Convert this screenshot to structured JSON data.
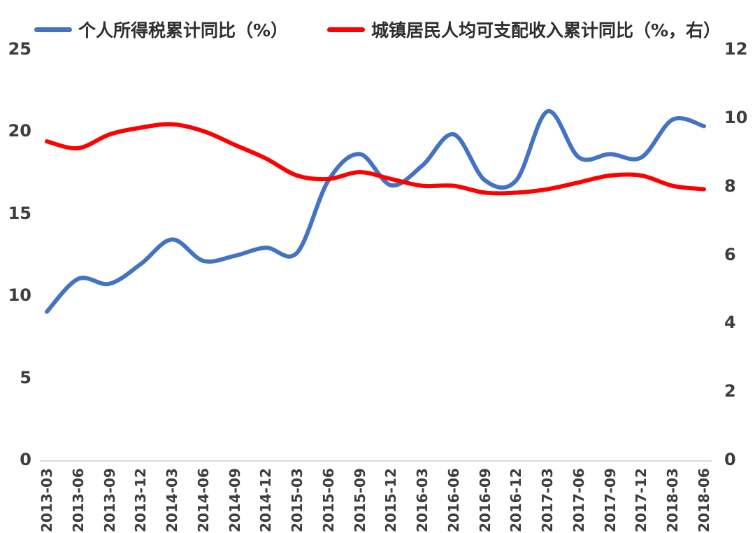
{
  "page": {
    "background": "#ffffff"
  },
  "chart_data": {
    "type": "line",
    "smooth": true,
    "title": "",
    "legend_position": "top",
    "grid": false,
    "categories": [
      "2013-03",
      "2013-06",
      "2013-09",
      "2013-12",
      "2014-03",
      "2014-06",
      "2014-09",
      "2014-12",
      "2015-03",
      "2015-06",
      "2015-09",
      "2015-12",
      "2016-03",
      "2016-06",
      "2016-09",
      "2016-12",
      "2017-03",
      "2017-06",
      "2017-09",
      "2017-12",
      "2018-03",
      "2018-06"
    ],
    "series": [
      {
        "name": "个人所得税累计同比（%）",
        "axis": "left",
        "color": "#4472C4",
        "values": [
          9.0,
          11.0,
          10.7,
          11.9,
          13.4,
          12.1,
          12.4,
          12.9,
          12.6,
          17.0,
          18.6,
          16.7,
          17.9,
          19.8,
          17.0,
          17.0,
          21.2,
          18.4,
          18.6,
          18.4,
          20.7,
          20.3
        ]
      },
      {
        "name": "城镇居民人均可支配收入累计同比（%，右）",
        "axis": "right",
        "color": "#FF0000",
        "values": [
          9.3,
          9.1,
          9.5,
          9.7,
          9.8,
          9.6,
          9.2,
          8.8,
          8.3,
          8.2,
          8.4,
          8.2,
          8.0,
          8.0,
          7.8,
          7.8,
          7.9,
          8.1,
          8.3,
          8.3,
          8.0,
          7.9
        ]
      }
    ],
    "left_axis": {
      "min": 0,
      "max": 25,
      "ticks": [
        0,
        5,
        10,
        15,
        20,
        25
      ]
    },
    "right_axis": {
      "min": 0,
      "max": 12,
      "ticks": [
        0,
        2,
        4,
        6,
        8,
        10,
        12
      ]
    },
    "colors": {
      "tick_text": "#3d3d3d",
      "axis_line": "#d9d9d9"
    }
  }
}
